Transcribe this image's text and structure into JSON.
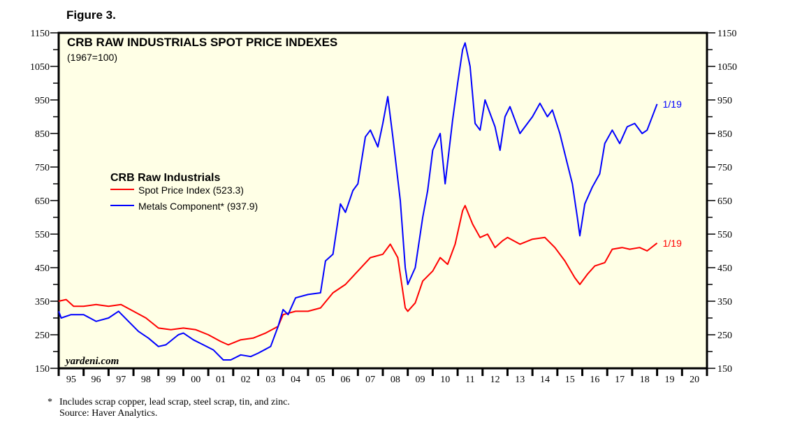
{
  "figure_label": "Figure 3.",
  "chart_data": {
    "type": "line",
    "title": "CRB RAW INDUSTRIALS SPOT PRICE INDEXES",
    "subtitle": "(1967=100)",
    "watermark": "yardeni.com",
    "ylim": [
      150,
      1150
    ],
    "yticks": [
      150,
      250,
      350,
      450,
      550,
      650,
      750,
      850,
      950,
      1050,
      1150
    ],
    "xlim": [
      1995,
      2021
    ],
    "xtick_labels": [
      "95",
      "96",
      "97",
      "98",
      "99",
      "00",
      "01",
      "02",
      "03",
      "04",
      "05",
      "06",
      "07",
      "08",
      "09",
      "10",
      "11",
      "12",
      "13",
      "14",
      "15",
      "16",
      "17",
      "18",
      "19",
      "20"
    ],
    "legend": {
      "title": "CRB Raw Industrials",
      "placement": "upper-left"
    },
    "series": [
      {
        "name": "Spot Price Index (523.3)",
        "color": "#ff0000",
        "end_label": "1/19",
        "x": [
          1995.0,
          1995.3,
          1995.6,
          1996.0,
          1996.5,
          1997.0,
          1997.5,
          1998.0,
          1998.5,
          1999.0,
          1999.5,
          2000.0,
          2000.5,
          2001.0,
          2001.5,
          2001.8,
          2002.3,
          2002.8,
          2003.3,
          2003.8,
          2004.0,
          2004.5,
          2005.0,
          2005.5,
          2006.0,
          2006.5,
          2007.0,
          2007.5,
          2008.0,
          2008.3,
          2008.6,
          2008.9,
          2009.0,
          2009.3,
          2009.6,
          2010.0,
          2010.3,
          2010.6,
          2010.9,
          2011.2,
          2011.3,
          2011.6,
          2011.9,
          2012.2,
          2012.5,
          2012.8,
          2013.0,
          2013.5,
          2014.0,
          2014.5,
          2014.9,
          2015.3,
          2015.7,
          2015.9,
          2016.2,
          2016.5,
          2016.9,
          2017.2,
          2017.6,
          2017.9,
          2018.3,
          2018.6,
          2019.0
        ],
        "values": [
          350,
          355,
          335,
          335,
          340,
          335,
          340,
          320,
          300,
          270,
          265,
          270,
          265,
          250,
          230,
          220,
          235,
          240,
          255,
          275,
          310,
          320,
          320,
          330,
          375,
          400,
          440,
          480,
          490,
          520,
          480,
          330,
          320,
          345,
          410,
          440,
          480,
          460,
          520,
          620,
          635,
          580,
          540,
          550,
          510,
          530,
          540,
          520,
          535,
          540,
          510,
          470,
          420,
          400,
          430,
          455,
          465,
          505,
          510,
          505,
          510,
          500,
          523.3
        ]
      },
      {
        "name": "Metals Component* (937.9)",
        "color": "#0000ff",
        "end_label": "1/19",
        "x": [
          1995.0,
          1995.1,
          1995.5,
          1996.0,
          1996.5,
          1997.0,
          1997.4,
          1997.8,
          1998.2,
          1998.6,
          1999.0,
          1999.3,
          1999.8,
          2000.0,
          2000.4,
          2000.8,
          2001.2,
          2001.6,
          2001.9,
          2002.3,
          2002.7,
          2003.0,
          2003.5,
          2003.8,
          2004.0,
          2004.2,
          2004.5,
          2005.0,
          2005.5,
          2005.7,
          2006.0,
          2006.3,
          2006.5,
          2006.8,
          2007.0,
          2007.3,
          2007.5,
          2007.8,
          2008.0,
          2008.2,
          2008.4,
          2008.7,
          2008.9,
          2009.0,
          2009.3,
          2009.6,
          2009.8,
          2010.0,
          2010.3,
          2010.5,
          2010.8,
          2011.0,
          2011.2,
          2011.3,
          2011.5,
          2011.7,
          2011.9,
          2012.1,
          2012.5,
          2012.7,
          2012.9,
          2013.1,
          2013.5,
          2013.8,
          2014.0,
          2014.3,
          2014.6,
          2014.8,
          2015.1,
          2015.4,
          2015.6,
          2015.8,
          2015.9,
          2016.1,
          2016.4,
          2016.7,
          2016.9,
          2017.2,
          2017.5,
          2017.8,
          2018.1,
          2018.4,
          2018.6,
          2019.0
        ],
        "values": [
          320,
          300,
          310,
          310,
          290,
          300,
          320,
          290,
          260,
          240,
          215,
          220,
          250,
          255,
          235,
          220,
          205,
          175,
          175,
          190,
          185,
          195,
          215,
          275,
          325,
          310,
          360,
          370,
          375,
          470,
          490,
          640,
          615,
          680,
          700,
          840,
          860,
          810,
          880,
          960,
          840,
          650,
          450,
          400,
          450,
          600,
          680,
          800,
          850,
          700,
          890,
          1000,
          1100,
          1120,
          1050,
          880,
          860,
          950,
          870,
          800,
          900,
          930,
          850,
          880,
          900,
          940,
          900,
          920,
          850,
          760,
          700,
          600,
          545,
          640,
          690,
          730,
          820,
          860,
          820,
          870,
          880,
          850,
          860,
          937.9
        ]
      }
    ]
  },
  "footnote": {
    "marker": "*",
    "text": "Includes scrap copper, lead scrap, steel scrap, tin, and zinc.",
    "source": "Source: Haver Analytics."
  }
}
